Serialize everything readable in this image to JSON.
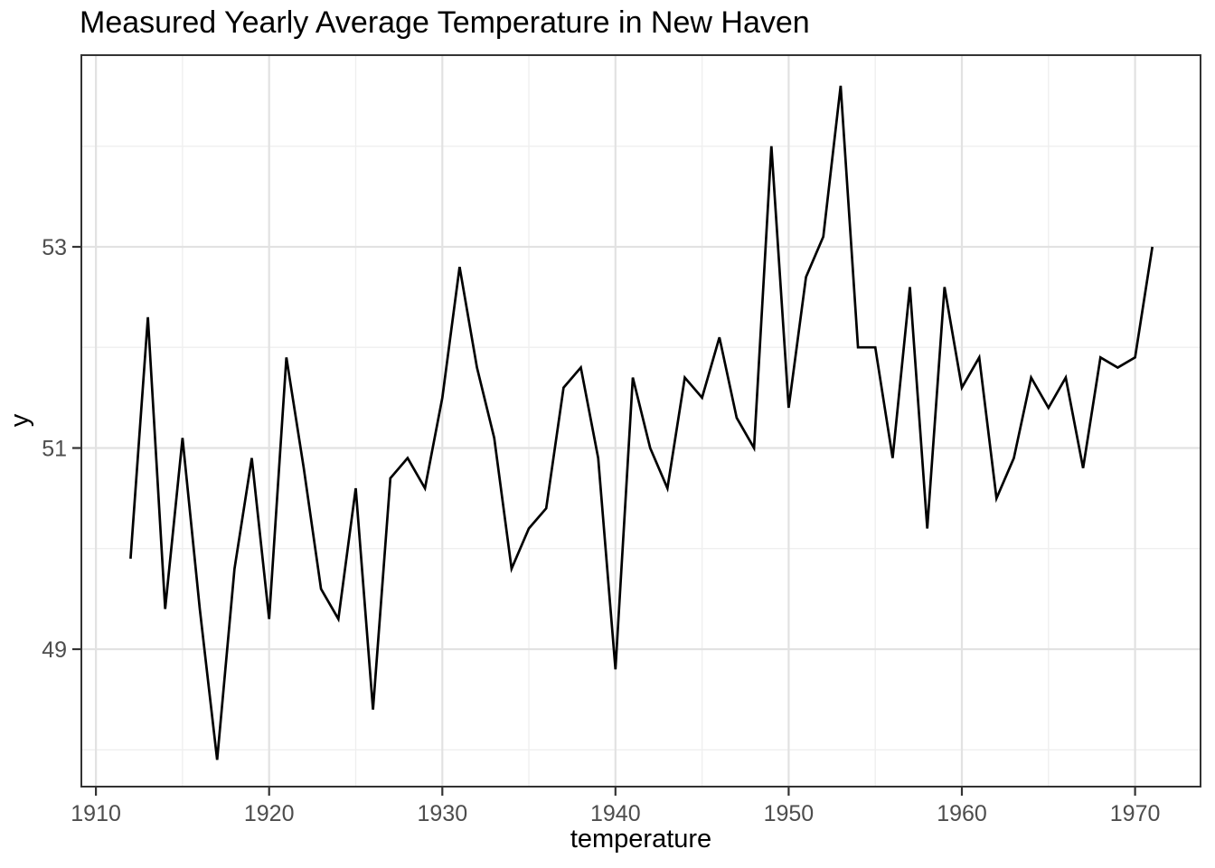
{
  "chart": {
    "title": "Measured Yearly Average Temperature in New Haven",
    "xlabel": "temperature",
    "ylabel": "y"
  },
  "chart_data": {
    "type": "line",
    "title": "Measured Yearly Average Temperature in New Haven",
    "xlabel": "temperature",
    "ylabel": "y",
    "x": [
      1912,
      1913,
      1914,
      1915,
      1916,
      1917,
      1918,
      1919,
      1920,
      1921,
      1922,
      1923,
      1924,
      1925,
      1926,
      1927,
      1928,
      1929,
      1930,
      1931,
      1932,
      1933,
      1934,
      1935,
      1936,
      1937,
      1938,
      1939,
      1940,
      1941,
      1942,
      1943,
      1944,
      1945,
      1946,
      1947,
      1948,
      1949,
      1950,
      1951,
      1952,
      1953,
      1954,
      1955,
      1956,
      1957,
      1958,
      1959,
      1960,
      1961,
      1962,
      1963,
      1964,
      1965,
      1966,
      1967,
      1968,
      1969,
      1970,
      1971
    ],
    "values": [
      49.9,
      52.3,
      49.4,
      51.1,
      49.4,
      47.9,
      49.8,
      50.9,
      49.3,
      51.9,
      50.8,
      49.6,
      49.3,
      50.6,
      48.4,
      50.7,
      50.9,
      50.6,
      51.5,
      52.8,
      51.8,
      51.1,
      49.8,
      50.2,
      50.4,
      51.6,
      51.8,
      50.9,
      48.8,
      51.7,
      51.0,
      50.6,
      51.7,
      51.5,
      52.1,
      51.3,
      51.0,
      54.0,
      51.4,
      52.7,
      53.1,
      54.6,
      52.0,
      52.0,
      50.9,
      52.6,
      50.2,
      52.6,
      51.6,
      51.9,
      50.5,
      50.9,
      51.7,
      51.4,
      51.7,
      50.8,
      51.9,
      51.8,
      51.9,
      53.0
    ],
    "xlim": [
      1909.16,
      1973.78
    ],
    "ylim": [
      47.634,
      54.905
    ],
    "x_major_ticks": [
      1910,
      1920,
      1930,
      1940,
      1950,
      1960,
      1970
    ],
    "x_tick_labels": [
      "1910",
      "1920",
      "1930",
      "1940",
      "1950",
      "1960",
      "1970"
    ],
    "x_minor_gridlines": [
      1915,
      1925,
      1935,
      1945,
      1955,
      1965
    ],
    "y_major_ticks": [
      49,
      51,
      53
    ],
    "y_tick_labels": [
      "49",
      "51",
      "53"
    ],
    "y_minor_gridlines": [
      48,
      50,
      52,
      54
    ],
    "grid": "major+minor",
    "legend": "none"
  },
  "colors": {
    "line": "#000000",
    "grid_major": "#E2E2E2",
    "grid_minor": "#EFEFEF",
    "panel_border": "#333333",
    "tick_mark": "#333333",
    "tick_label": "#4D4D4D",
    "title_text": "#000000",
    "background": "#FFFFFF"
  }
}
